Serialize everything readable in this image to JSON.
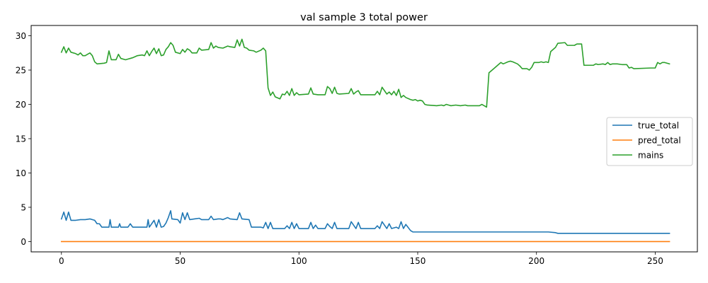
{
  "chart_data": {
    "type": "line",
    "title": "val sample 3 total power",
    "xlabel": "",
    "ylabel": "",
    "xlim": [
      -12.75,
      267.75
    ],
    "ylim": [
      -1.5,
      31.5
    ],
    "xticks": [
      0,
      50,
      100,
      150,
      200,
      250
    ],
    "yticks": [
      0,
      5,
      10,
      15,
      20,
      25,
      30
    ],
    "grid": false,
    "legend_position": "center-right",
    "series": [
      {
        "name": "true_total",
        "color": "#1f77b4",
        "points": [
          [
            0,
            3.3
          ],
          [
            1,
            4.3
          ],
          [
            2,
            3.1
          ],
          [
            3,
            4.3
          ],
          [
            4,
            3.1
          ],
          [
            6,
            3.1
          ],
          [
            8,
            3.2
          ],
          [
            10,
            3.2
          ],
          [
            12,
            3.3
          ],
          [
            14,
            3.1
          ],
          [
            15,
            2.6
          ],
          [
            16,
            2.6
          ],
          [
            17,
            2.1
          ],
          [
            20,
            2.1
          ],
          [
            20.5,
            3.2
          ],
          [
            21,
            2.1
          ],
          [
            24,
            2.1
          ],
          [
            24.5,
            2.6
          ],
          [
            25,
            2.1
          ],
          [
            28,
            2.1
          ],
          [
            29,
            2.6
          ],
          [
            30,
            2.1
          ],
          [
            36,
            2.1
          ],
          [
            36.5,
            3.2
          ],
          [
            37,
            2.1
          ],
          [
            38,
            2.6
          ],
          [
            39,
            3.1
          ],
          [
            40,
            2.1
          ],
          [
            41,
            3.2
          ],
          [
            42,
            2.1
          ],
          [
            43,
            2.2
          ],
          [
            44,
            2.7
          ],
          [
            45,
            3.5
          ],
          [
            46,
            4.5
          ],
          [
            46.5,
            3.3
          ],
          [
            49,
            3.2
          ],
          [
            50,
            2.7
          ],
          [
            51,
            4.2
          ],
          [
            52,
            3.2
          ],
          [
            53,
            4.2
          ],
          [
            54,
            3.2
          ],
          [
            56,
            3.3
          ],
          [
            58,
            3.4
          ],
          [
            59,
            3.2
          ],
          [
            62,
            3.2
          ],
          [
            63,
            3.7
          ],
          [
            64,
            3.2
          ],
          [
            66,
            3.3
          ],
          [
            67,
            3.3
          ],
          [
            68,
            3.2
          ],
          [
            70,
            3.5
          ],
          [
            71,
            3.3
          ],
          [
            74,
            3.2
          ],
          [
            75,
            4.2
          ],
          [
            76,
            3.3
          ],
          [
            79,
            3.2
          ],
          [
            80,
            2.1
          ],
          [
            84,
            2.1
          ],
          [
            85,
            2.0
          ],
          [
            86,
            2.8
          ],
          [
            87,
            1.9
          ],
          [
            88,
            2.8
          ],
          [
            89,
            1.9
          ],
          [
            94,
            1.9
          ],
          [
            95,
            2.3
          ],
          [
            96,
            1.9
          ],
          [
            97,
            2.8
          ],
          [
            98,
            1.9
          ],
          [
            99,
            2.6
          ],
          [
            100,
            1.9
          ],
          [
            104,
            1.9
          ],
          [
            105,
            2.8
          ],
          [
            106,
            1.9
          ],
          [
            107,
            2.4
          ],
          [
            108,
            1.9
          ],
          [
            111,
            1.9
          ],
          [
            112,
            2.6
          ],
          [
            113,
            2.2
          ],
          [
            114,
            1.9
          ],
          [
            115,
            2.8
          ],
          [
            116,
            1.9
          ],
          [
            121,
            1.9
          ],
          [
            122,
            2.9
          ],
          [
            123,
            2.4
          ],
          [
            124,
            1.9
          ],
          [
            125,
            2.8
          ],
          [
            126,
            1.9
          ],
          [
            132,
            1.9
          ],
          [
            133,
            2.3
          ],
          [
            134,
            1.9
          ],
          [
            135,
            2.9
          ],
          [
            136,
            2.4
          ],
          [
            137,
            1.9
          ],
          [
            138,
            2.6
          ],
          [
            139,
            1.9
          ],
          [
            141,
            2.1
          ],
          [
            142,
            1.9
          ],
          [
            143,
            2.9
          ],
          [
            144,
            1.9
          ],
          [
            145,
            2.5
          ],
          [
            147,
            1.6
          ],
          [
            148,
            1.4
          ],
          [
            160,
            1.4
          ],
          [
            180,
            1.4
          ],
          [
            200,
            1.4
          ],
          [
            205,
            1.4
          ],
          [
            208,
            1.3
          ],
          [
            209,
            1.2
          ],
          [
            256,
            1.2
          ]
        ]
      },
      {
        "name": "pred_total",
        "color": "#ff7f0e",
        "points": [
          [
            0,
            0
          ],
          [
            256,
            0
          ]
        ]
      },
      {
        "name": "mains",
        "color": "#2ca02c",
        "points": [
          [
            0,
            27.6
          ],
          [
            1,
            28.4
          ],
          [
            2,
            27.5
          ],
          [
            3,
            28.2
          ],
          [
            4,
            27.6
          ],
          [
            6,
            27.4
          ],
          [
            7,
            27.2
          ],
          [
            8,
            27.5
          ],
          [
            9,
            27.1
          ],
          [
            10,
            27.1
          ],
          [
            11,
            27.3
          ],
          [
            12,
            27.5
          ],
          [
            13,
            27.1
          ],
          [
            14,
            26.2
          ],
          [
            15,
            25.9
          ],
          [
            18,
            26.0
          ],
          [
            19,
            26.1
          ],
          [
            20,
            27.8
          ],
          [
            21,
            26.5
          ],
          [
            23,
            26.5
          ],
          [
            24,
            27.3
          ],
          [
            25,
            26.7
          ],
          [
            27,
            26.5
          ],
          [
            28,
            26.6
          ],
          [
            29,
            26.7
          ],
          [
            30,
            26.8
          ],
          [
            32,
            27.1
          ],
          [
            34,
            27.2
          ],
          [
            35,
            27.1
          ],
          [
            36,
            27.8
          ],
          [
            37,
            27.1
          ],
          [
            38,
            27.7
          ],
          [
            39,
            28.2
          ],
          [
            40,
            27.4
          ],
          [
            41,
            28.1
          ],
          [
            42,
            27.1
          ],
          [
            43,
            27.2
          ],
          [
            44,
            28.0
          ],
          [
            45,
            28.4
          ],
          [
            46,
            29.0
          ],
          [
            47,
            28.6
          ],
          [
            48,
            27.6
          ],
          [
            50,
            27.4
          ],
          [
            51,
            28.0
          ],
          [
            52,
            27.6
          ],
          [
            53,
            28.1
          ],
          [
            54,
            27.9
          ],
          [
            55,
            27.5
          ],
          [
            57,
            27.5
          ],
          [
            58,
            28.2
          ],
          [
            59,
            27.9
          ],
          [
            62,
            28.0
          ],
          [
            63,
            29.0
          ],
          [
            64,
            28.2
          ],
          [
            65,
            28.5
          ],
          [
            66,
            28.3
          ],
          [
            68,
            28.2
          ],
          [
            70,
            28.5
          ],
          [
            71,
            28.4
          ],
          [
            73,
            28.3
          ],
          [
            74,
            29.4
          ],
          [
            75,
            28.5
          ],
          [
            76,
            29.5
          ],
          [
            77,
            28.3
          ],
          [
            78,
            28.2
          ],
          [
            79,
            27.9
          ],
          [
            81,
            27.8
          ],
          [
            82,
            27.6
          ],
          [
            84,
            27.9
          ],
          [
            85,
            28.2
          ],
          [
            86,
            27.8
          ],
          [
            87,
            22.4
          ],
          [
            88,
            21.3
          ],
          [
            89,
            21.8
          ],
          [
            90,
            21.1
          ],
          [
            92,
            20.8
          ],
          [
            93,
            21.5
          ],
          [
            94,
            21.4
          ],
          [
            95,
            21.9
          ],
          [
            96,
            21.3
          ],
          [
            97,
            22.3
          ],
          [
            98,
            21.3
          ],
          [
            99,
            21.7
          ],
          [
            100,
            21.4
          ],
          [
            104,
            21.5
          ],
          [
            105,
            22.4
          ],
          [
            106,
            21.5
          ],
          [
            108,
            21.4
          ],
          [
            111,
            21.4
          ],
          [
            112,
            22.6
          ],
          [
            113,
            22.3
          ],
          [
            114,
            21.6
          ],
          [
            115,
            22.5
          ],
          [
            116,
            21.6
          ],
          [
            117,
            21.5
          ],
          [
            121,
            21.6
          ],
          [
            122,
            22.3
          ],
          [
            123,
            21.5
          ],
          [
            124,
            21.8
          ],
          [
            125,
            22.0
          ],
          [
            126,
            21.4
          ],
          [
            132,
            21.4
          ],
          [
            133,
            21.9
          ],
          [
            134,
            21.4
          ],
          [
            135,
            22.5
          ],
          [
            136,
            22.0
          ],
          [
            137,
            21.5
          ],
          [
            138,
            21.8
          ],
          [
            139,
            21.4
          ],
          [
            140,
            21.9
          ],
          [
            141,
            21.3
          ],
          [
            142,
            22.2
          ],
          [
            143,
            21.0
          ],
          [
            144,
            21.3
          ],
          [
            145,
            21.0
          ],
          [
            147,
            20.7
          ],
          [
            148,
            20.6
          ],
          [
            149,
            20.7
          ],
          [
            150,
            20.5
          ],
          [
            151,
            20.6
          ],
          [
            152,
            20.5
          ],
          [
            153,
            20.0
          ],
          [
            154,
            19.9
          ],
          [
            158,
            19.8
          ],
          [
            160,
            19.9
          ],
          [
            161,
            19.8
          ],
          [
            162,
            20.0
          ],
          [
            164,
            19.8
          ],
          [
            166,
            19.9
          ],
          [
            168,
            19.8
          ],
          [
            170,
            19.9
          ],
          [
            171,
            19.8
          ],
          [
            176,
            19.8
          ],
          [
            177,
            20.0
          ],
          [
            178,
            19.8
          ],
          [
            179,
            19.6
          ],
          [
            180,
            24.6
          ],
          [
            182,
            25.2
          ],
          [
            184,
            25.8
          ],
          [
            185,
            26.1
          ],
          [
            186,
            25.9
          ],
          [
            188,
            26.2
          ],
          [
            189,
            26.3
          ],
          [
            190,
            26.2
          ],
          [
            192,
            25.9
          ],
          [
            193,
            25.6
          ],
          [
            194,
            25.2
          ],
          [
            196,
            25.2
          ],
          [
            197,
            25.0
          ],
          [
            198,
            25.4
          ],
          [
            199,
            26.1
          ],
          [
            201,
            26.1
          ],
          [
            202,
            26.2
          ],
          [
            203,
            26.1
          ],
          [
            204,
            26.2
          ],
          [
            205,
            26.1
          ],
          [
            206,
            27.7
          ],
          [
            208,
            28.3
          ],
          [
            209,
            28.9
          ],
          [
            212,
            29.0
          ],
          [
            213,
            28.6
          ],
          [
            216,
            28.6
          ],
          [
            217,
            28.8
          ],
          [
            219,
            28.8
          ],
          [
            220,
            25.7
          ],
          [
            224,
            25.7
          ],
          [
            225,
            25.9
          ],
          [
            226,
            25.8
          ],
          [
            228,
            25.9
          ],
          [
            229,
            25.8
          ],
          [
            230,
            26.1
          ],
          [
            231,
            25.8
          ],
          [
            232,
            25.9
          ],
          [
            234,
            25.9
          ],
          [
            236,
            25.8
          ],
          [
            238,
            25.8
          ],
          [
            239,
            25.3
          ],
          [
            240,
            25.4
          ],
          [
            241,
            25.2
          ],
          [
            248,
            25.3
          ],
          [
            250,
            25.3
          ],
          [
            251,
            26.1
          ],
          [
            252,
            25.9
          ],
          [
            253,
            26.1
          ],
          [
            254,
            26.1
          ],
          [
            256,
            25.9
          ]
        ]
      }
    ]
  }
}
